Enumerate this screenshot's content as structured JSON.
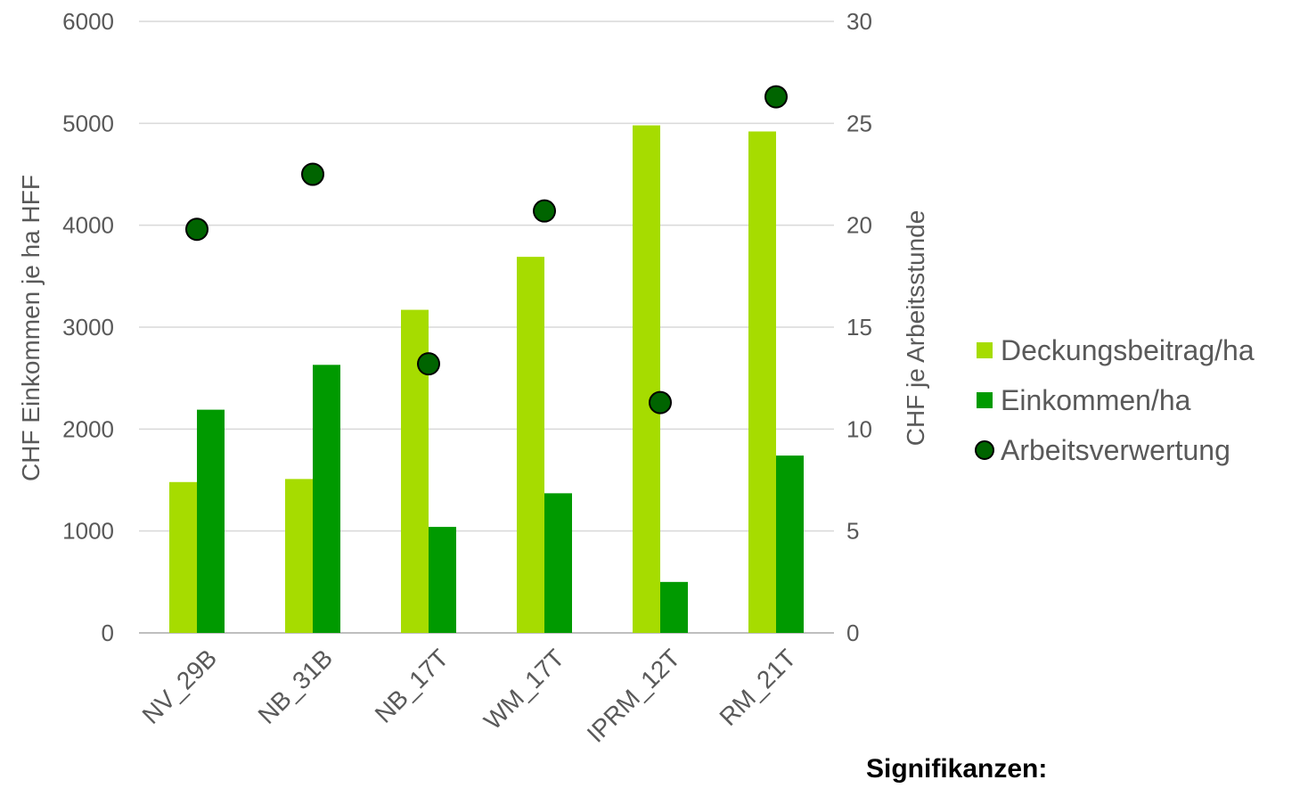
{
  "chart_data": {
    "type": "bar",
    "categories": [
      "NV_29B",
      "NB_31B",
      "NB_17T",
      "WM_17T",
      "IPRM_12T",
      "RM_21T"
    ],
    "series": [
      {
        "name": "Deckungsbeitrag/ha",
        "kind": "bar",
        "axis": "left",
        "color": "#a6dc00",
        "values": [
          1480,
          1510,
          3170,
          3690,
          4980,
          4920
        ]
      },
      {
        "name": "Einkommen/ha",
        "kind": "bar",
        "axis": "left",
        "color": "#009a00",
        "values": [
          2190,
          2630,
          1040,
          1370,
          500,
          1740
        ]
      },
      {
        "name": "Arbeitsverwertung",
        "kind": "scatter",
        "axis": "right",
        "color": "#006400",
        "values": [
          19.8,
          22.5,
          13.2,
          20.7,
          11.3,
          26.3
        ]
      }
    ],
    "ylabel": "CHF Einkommen je ha HFF",
    "y2label": "CHF je Arbeitsstunde",
    "ylim": [
      0,
      6000
    ],
    "y2lim": [
      0,
      30
    ],
    "yticks": [
      0,
      1000,
      2000,
      3000,
      4000,
      5000,
      6000
    ],
    "y2ticks": [
      0,
      5,
      10,
      15,
      20,
      25,
      30
    ],
    "grid": true,
    "legend_position": "right",
    "footnote": "Signifikanzen:"
  }
}
